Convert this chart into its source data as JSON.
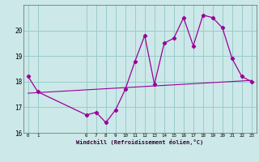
{
  "xlabel": "Windchill (Refroidissement éolien,°C)",
  "background_color": "#cce8e8",
  "line_color": "#990099",
  "grid_color": "#99cccc",
  "hours": [
    0,
    1,
    6,
    7,
    8,
    9,
    10,
    11,
    12,
    13,
    14,
    15,
    16,
    17,
    18,
    19,
    20,
    21,
    22,
    23
  ],
  "windchill": [
    18.2,
    17.6,
    16.7,
    16.8,
    16.4,
    16.9,
    17.7,
    18.8,
    19.8,
    17.9,
    19.5,
    19.7,
    20.5,
    19.4,
    20.6,
    20.5,
    20.1,
    18.9,
    18.2,
    18.0
  ],
  "trend_x": [
    0,
    23
  ],
  "trend_y": [
    17.55,
    18.05
  ],
  "ylim": [
    16.0,
    21.0
  ],
  "yticks": [
    16,
    17,
    18,
    19,
    20
  ],
  "xticks": [
    0,
    1,
    6,
    7,
    8,
    9,
    10,
    11,
    12,
    13,
    14,
    15,
    16,
    17,
    18,
    19,
    20,
    21,
    22,
    23
  ]
}
